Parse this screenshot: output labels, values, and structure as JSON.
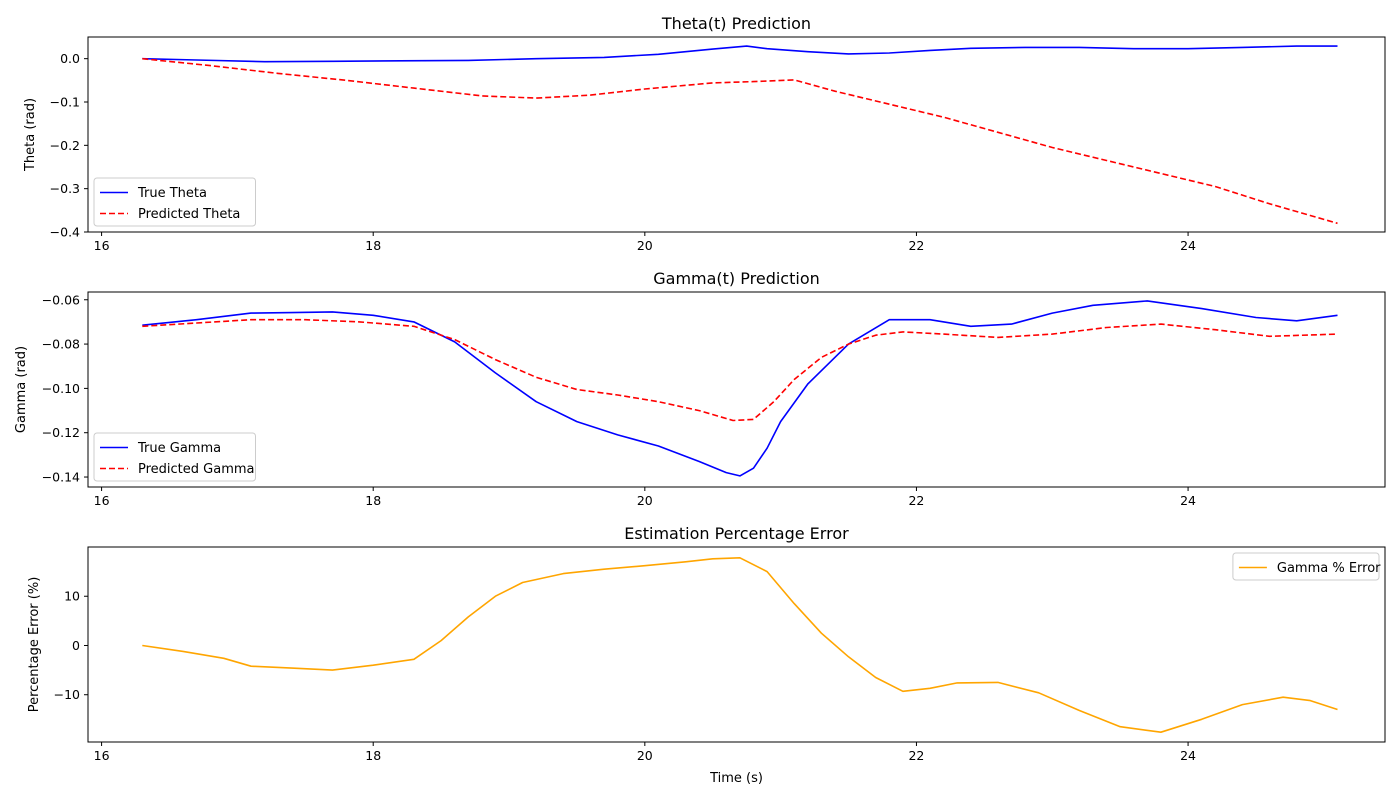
{
  "chart_data": [
    {
      "type": "line",
      "title": "Theta(t) Prediction",
      "xlabel": "",
      "ylabel": "Theta (rad)",
      "xlim": [
        15.9,
        25.45
      ],
      "ylim": [
        -0.4,
        0.05
      ],
      "xticks": [
        16,
        18,
        20,
        22,
        24
      ],
      "xtick_labels": [
        "16",
        "18",
        "20",
        "22",
        "24"
      ],
      "yticks": [
        -0.4,
        -0.3,
        -0.2,
        -0.1,
        0.0
      ],
      "ytick_labels": [
        "−0.4",
        "−0.3",
        "−0.2",
        "−0.1",
        "0.0"
      ],
      "legend_position": "lower-left",
      "grid": false,
      "series": [
        {
          "name": "True Theta",
          "color": "#0000ff",
          "dash": "solid",
          "x": [
            16.3,
            16.7,
            17.2,
            17.7,
            18.2,
            18.7,
            19.2,
            19.7,
            20.1,
            20.5,
            20.75,
            20.9,
            21.2,
            21.5,
            21.8,
            22.1,
            22.4,
            22.8,
            23.2,
            23.6,
            24.0,
            24.4,
            24.8,
            25.1
          ],
          "values": [
            0.0,
            -0.003,
            -0.007,
            -0.006,
            -0.005,
            -0.004,
            0.0,
            0.003,
            0.01,
            0.022,
            0.029,
            0.023,
            0.016,
            0.011,
            0.013,
            0.019,
            0.024,
            0.026,
            0.026,
            0.023,
            0.023,
            0.026,
            0.029,
            0.029
          ]
        },
        {
          "name": "Predicted Theta",
          "color": "#ff0000",
          "dash": "dashed",
          "x": [
            16.3,
            16.8,
            17.3,
            17.8,
            18.3,
            18.8,
            19.2,
            19.6,
            20.0,
            20.5,
            20.8,
            21.1,
            21.4,
            21.8,
            22.2,
            22.6,
            23.0,
            23.4,
            23.8,
            24.2,
            24.6,
            25.1
          ],
          "values": [
            0.0,
            -0.016,
            -0.034,
            -0.05,
            -0.068,
            -0.086,
            -0.091,
            -0.084,
            -0.07,
            -0.056,
            -0.053,
            -0.049,
            -0.075,
            -0.105,
            -0.135,
            -0.17,
            -0.205,
            -0.235,
            -0.265,
            -0.295,
            -0.335,
            -0.38
          ]
        }
      ]
    },
    {
      "type": "line",
      "title": "Gamma(t) Prediction",
      "xlabel": "",
      "ylabel": "Gamma (rad)",
      "xlim": [
        15.9,
        25.45
      ],
      "ylim": [
        -0.1445,
        -0.0565
      ],
      "xticks": [
        16,
        18,
        20,
        22,
        24
      ],
      "xtick_labels": [
        "16",
        "18",
        "20",
        "22",
        "24"
      ],
      "yticks": [
        -0.14,
        -0.12,
        -0.1,
        -0.08,
        -0.06
      ],
      "ytick_labels": [
        "−0.14",
        "−0.12",
        "−0.10",
        "−0.08",
        "−0.06"
      ],
      "legend_position": "lower-left",
      "grid": false,
      "series": [
        {
          "name": "True Gamma",
          "color": "#0000ff",
          "dash": "solid",
          "x": [
            16.3,
            16.7,
            17.1,
            17.4,
            17.7,
            18.0,
            18.3,
            18.6,
            18.9,
            19.2,
            19.5,
            19.8,
            20.1,
            20.4,
            20.6,
            20.7,
            20.8,
            20.9,
            21.0,
            21.2,
            21.5,
            21.8,
            22.1,
            22.4,
            22.7,
            23.0,
            23.3,
            23.7,
            24.1,
            24.5,
            24.8,
            25.1
          ],
          "values": [
            -0.0715,
            -0.069,
            -0.066,
            -0.0658,
            -0.0655,
            -0.067,
            -0.07,
            -0.079,
            -0.093,
            -0.106,
            -0.115,
            -0.121,
            -0.126,
            -0.133,
            -0.138,
            -0.1395,
            -0.136,
            -0.127,
            -0.115,
            -0.098,
            -0.08,
            -0.069,
            -0.069,
            -0.072,
            -0.071,
            -0.066,
            -0.0625,
            -0.0605,
            -0.064,
            -0.068,
            -0.0695,
            -0.067
          ]
        },
        {
          "name": "Predicted Gamma",
          "color": "#ff0000",
          "dash": "dashed",
          "x": [
            16.3,
            16.7,
            17.1,
            17.5,
            17.9,
            18.3,
            18.6,
            18.9,
            19.2,
            19.5,
            19.8,
            20.1,
            20.4,
            20.65,
            20.8,
            20.95,
            21.1,
            21.3,
            21.5,
            21.7,
            21.9,
            22.2,
            22.6,
            23.0,
            23.4,
            23.8,
            24.2,
            24.6,
            25.1
          ],
          "values": [
            -0.072,
            -0.0705,
            -0.069,
            -0.069,
            -0.07,
            -0.072,
            -0.078,
            -0.087,
            -0.095,
            -0.1005,
            -0.103,
            -0.106,
            -0.11,
            -0.1145,
            -0.114,
            -0.106,
            -0.096,
            -0.086,
            -0.08,
            -0.076,
            -0.0745,
            -0.0755,
            -0.077,
            -0.0755,
            -0.0725,
            -0.071,
            -0.0735,
            -0.0765,
            -0.0755
          ]
        }
      ]
    },
    {
      "type": "line",
      "title": "Estimation Percentage Error",
      "xlabel": "Time (s)",
      "ylabel": "Percentage Error (%)",
      "xlim": [
        15.9,
        25.45
      ],
      "ylim": [
        -19.6,
        20.0
      ],
      "xticks": [
        16,
        18,
        20,
        22,
        24
      ],
      "xtick_labels": [
        "16",
        "18",
        "20",
        "22",
        "24"
      ],
      "yticks": [
        -10,
        0,
        10
      ],
      "ytick_labels": [
        "−10",
        "0",
        "10"
      ],
      "legend_position": "upper-right",
      "grid": false,
      "series": [
        {
          "name": "Gamma % Error",
          "color": "#ffa500",
          "dash": "solid",
          "x": [
            16.3,
            16.6,
            16.9,
            17.1,
            17.4,
            17.7,
            18.0,
            18.3,
            18.5,
            18.7,
            18.9,
            19.1,
            19.4,
            19.7,
            20.0,
            20.3,
            20.5,
            20.7,
            20.9,
            21.1,
            21.3,
            21.5,
            21.7,
            21.9,
            22.1,
            22.3,
            22.6,
            22.9,
            23.2,
            23.5,
            23.8,
            24.1,
            24.4,
            24.7,
            24.9,
            25.1
          ],
          "values": [
            0.0,
            -1.2,
            -2.6,
            -4.2,
            -4.6,
            -5.0,
            -4.0,
            -2.8,
            1.0,
            5.8,
            10.0,
            12.8,
            14.6,
            15.5,
            16.2,
            17.0,
            17.6,
            17.8,
            15.0,
            8.5,
            2.5,
            -2.3,
            -6.5,
            -9.3,
            -8.7,
            -7.6,
            -7.5,
            -9.6,
            -13.2,
            -16.5,
            -17.6,
            -15.0,
            -12.0,
            -10.5,
            -11.2,
            -13.0
          ]
        }
      ]
    }
  ]
}
